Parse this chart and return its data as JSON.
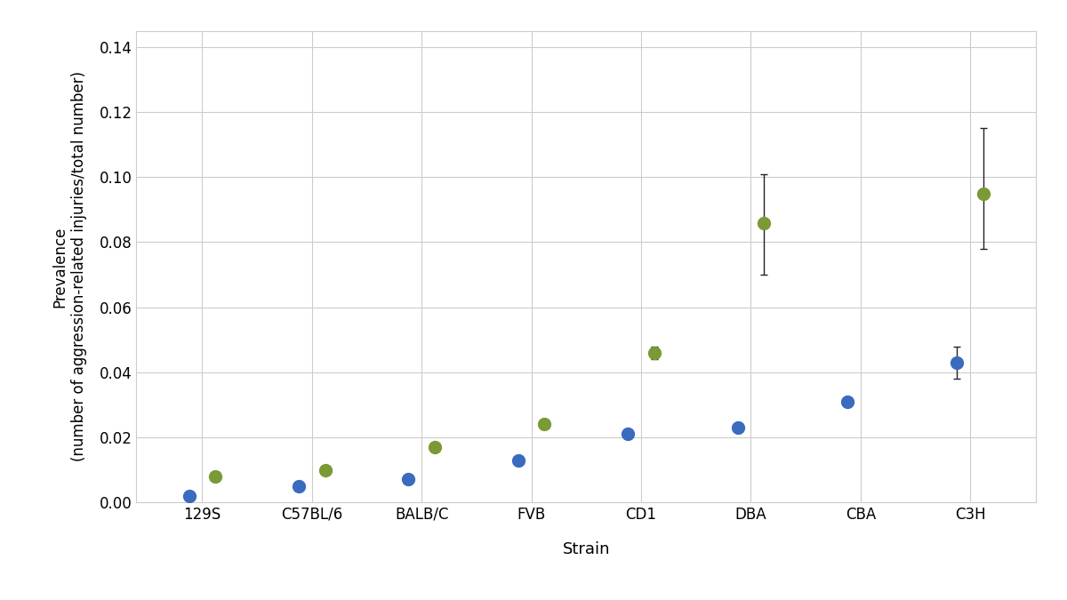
{
  "strains": [
    "129S",
    "C57BL/6",
    "BALB/C",
    "FVB",
    "CD1",
    "DBA",
    "CBA",
    "C3H"
  ],
  "blue_values": [
    0.002,
    0.005,
    0.007,
    0.013,
    0.021,
    0.023,
    0.031,
    0.043
  ],
  "green_values": [
    0.008,
    0.01,
    0.017,
    0.024,
    0.046,
    0.086,
    null,
    0.095
  ],
  "blue_yerr_low": [
    null,
    null,
    null,
    null,
    null,
    null,
    null,
    0.005
  ],
  "blue_yerr_high": [
    null,
    null,
    null,
    null,
    null,
    null,
    null,
    0.005
  ],
  "green_yerr_low": [
    null,
    null,
    null,
    null,
    0.002,
    0.016,
    null,
    0.017
  ],
  "green_yerr_high": [
    null,
    null,
    null,
    null,
    0.002,
    0.015,
    null,
    0.02
  ],
  "blue_color": "#3a6bbf",
  "green_color": "#7a9a35",
  "marker_size": 10,
  "ylabel": "Prevalence\n(number of aggression-related injuries/total number)",
  "xlabel": "Strain",
  "ylim": [
    0,
    0.145
  ],
  "yticks": [
    0,
    0.02,
    0.04,
    0.06,
    0.08,
    0.1,
    0.12,
    0.14
  ],
  "background_color": "#ffffff",
  "plot_bg_color": "#ffffff",
  "grid_color": "#cccccc",
  "capsize": 3,
  "elinewidth": 1.0,
  "capthick": 1.0,
  "ecolor": "#222222"
}
